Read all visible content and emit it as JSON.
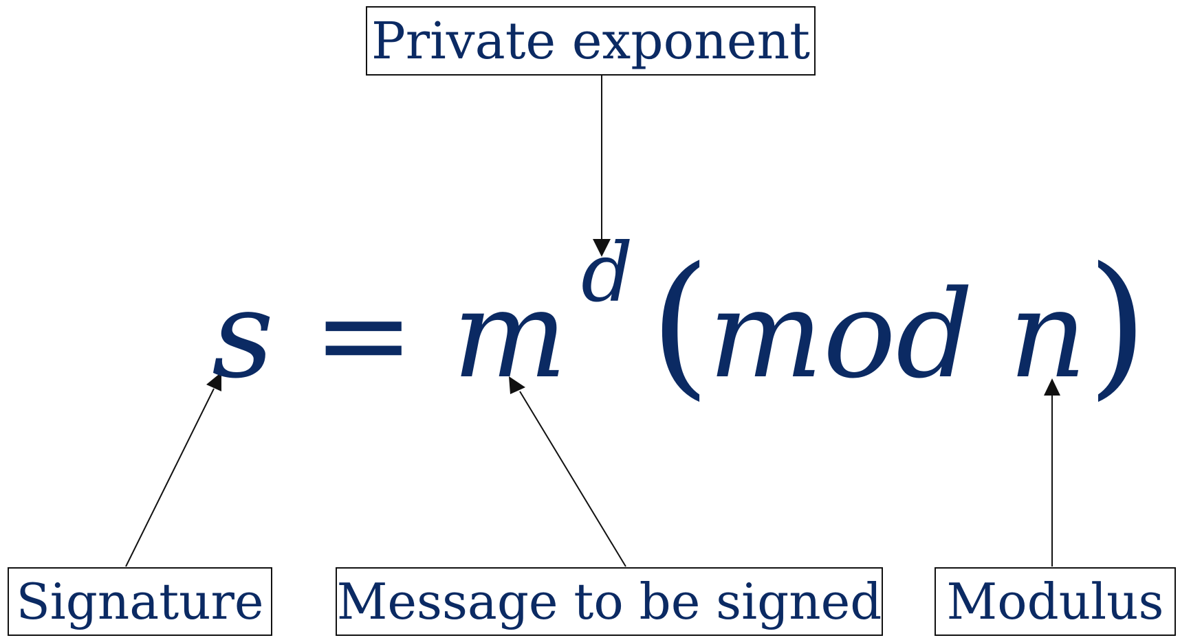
{
  "labels": {
    "private_exponent": "Private exponent",
    "signature": "Signature",
    "message": "Message to be signed",
    "modulus": "Modulus"
  },
  "formula": {
    "s": "s",
    "equals": "=",
    "m": "m",
    "d": "d",
    "open_paren": "(",
    "mod": "mod",
    "n": "n",
    "close_paren": ")"
  },
  "colors": {
    "text": "#0b2a63",
    "border": "#111111",
    "arrow": "#111111"
  }
}
